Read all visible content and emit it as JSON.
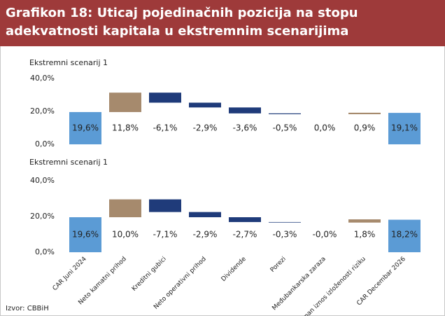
{
  "header": {
    "title": "Grafikon 18: Uticaj pojedinačnih pozicija na stopu adekvatnosti kapitala u ekstremnim scenarijima"
  },
  "source": "Izvor: CBBiH",
  "chart_data": [
    {
      "type": "waterfall",
      "title": "Ekstremni scenarij 1",
      "values": [
        19.6,
        11.8,
        -6.1,
        -2.9,
        -3.6,
        -0.5,
        0.0,
        0.9,
        19.1
      ],
      "value_labels": [
        "19,6%",
        "11,8%",
        "-6,1%",
        "-2,9%",
        "-3,6%",
        "-0,5%",
        "0,0%",
        "0,9%",
        "19,1%"
      ],
      "total_color": "#5b9bd5",
      "increase_color": "#a68a6d",
      "decrease_color": "#1f3b7a",
      "ylim": [
        0,
        40
      ],
      "yticks": [
        {
          "value": 0,
          "label": "0,0%"
        },
        {
          "value": 20,
          "label": "20,0%"
        },
        {
          "value": 40,
          "label": "40,0%"
        }
      ]
    },
    {
      "type": "waterfall",
      "title": "Ekstremni scenarij 1",
      "categories": [
        "CAR Juni 2024",
        "Neto kamatni prihod",
        "Kreditni gubici",
        "Neto operativni prihod",
        "Dividende",
        "Porezi",
        "Međubankarska zaraza",
        "Ukupan iznos izloženosti riziku",
        "CAR Decembar 2026"
      ],
      "values": [
        19.6,
        10.0,
        -7.1,
        -2.9,
        -2.7,
        -0.3,
        0.0,
        1.8,
        18.2
      ],
      "value_labels": [
        "19,6%",
        "10,0%",
        "-7,1%",
        "-2,9%",
        "-2,7%",
        "-0,3%",
        "-0,0%",
        "1,8%",
        "18,2%"
      ],
      "total_color": "#5b9bd5",
      "increase_color": "#a68a6d",
      "decrease_color": "#1f3b7a",
      "ylim": [
        0,
        40
      ],
      "yticks": [
        {
          "value": 0,
          "label": "0,0%"
        },
        {
          "value": 20,
          "label": "20,0%"
        },
        {
          "value": 40,
          "label": "40,0%"
        }
      ]
    }
  ]
}
